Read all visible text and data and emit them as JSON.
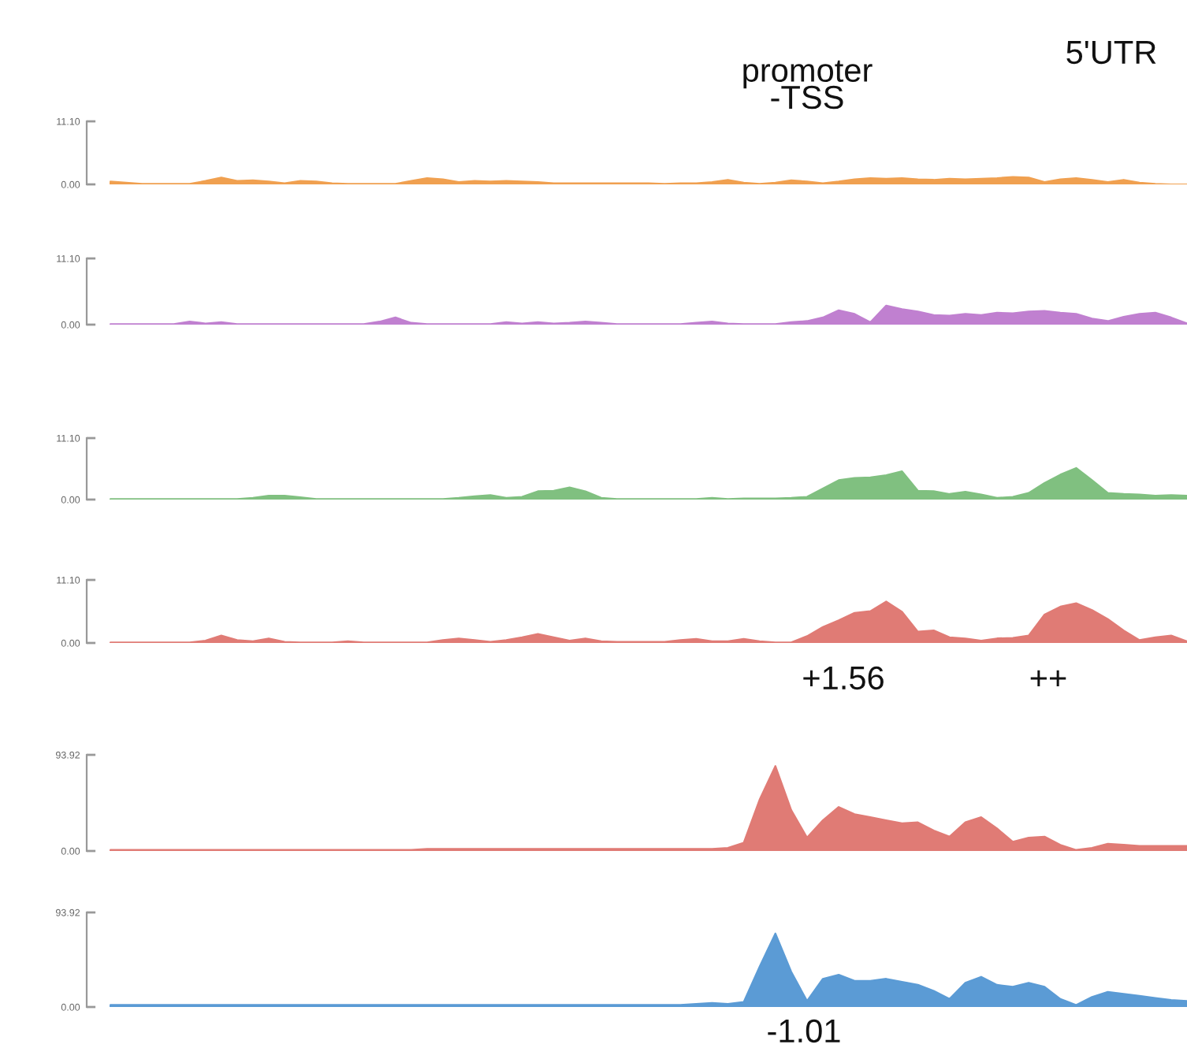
{
  "chart_data": [
    {
      "type": "area",
      "categories": [
        null,
        null,
        null,
        null,
        null,
        null,
        null,
        null,
        null,
        null,
        null,
        null,
        null,
        null,
        null,
        null,
        null,
        null,
        null,
        null,
        null,
        null,
        null,
        null,
        null,
        null,
        null,
        null,
        null,
        null,
        null,
        null,
        null,
        null,
        null,
        null,
        null,
        null,
        null,
        null,
        null,
        null,
        null,
        null,
        null,
        null,
        null,
        null,
        null,
        null,
        null,
        null,
        null,
        null,
        null,
        null,
        null,
        null,
        null,
        null,
        null,
        null,
        null,
        null,
        null,
        null,
        null,
        null,
        null
      ],
      "series": [
        {
          "color": "#f0a050",
          "values": [
            0.5,
            0.3,
            0.1,
            0.1,
            0.1,
            0.1,
            0.6,
            1.2,
            0.6,
            0.7,
            0.5,
            0.2,
            0.6,
            0.5,
            0.2,
            0.1,
            0.1,
            0.1,
            0.1,
            0.6,
            1.1,
            0.9,
            0.4,
            0.6,
            0.5,
            0.6,
            0.5,
            0.4,
            0.2,
            0.2,
            0.2,
            0.2,
            0.2,
            0.2,
            0.2,
            0.1,
            0.2,
            0.2,
            0.4,
            0.8,
            0.3,
            0.1,
            0.3,
            0.7,
            0.5,
            0.2,
            0.5,
            0.9,
            1.1,
            1.0,
            1.1,
            0.9,
            0.8,
            1.0,
            0.9,
            1.0,
            1.1,
            1.3,
            1.2,
            0.4,
            0.9,
            1.1,
            0.8,
            0.4,
            0.8,
            0.3,
            0.1,
            0,
            0
          ]
        }
      ],
      "ylim": [
        0,
        11.1
      ],
      "yticks": [
        {
          "value": 0,
          "label": "0.00"
        },
        {
          "value": 11.1,
          "label": "11.10"
        }
      ],
      "tick_labels": "y",
      "annotations": [
        "promoter\n-TSS",
        "5'UTR"
      ]
    },
    {
      "type": "area",
      "categories": [
        null,
        null,
        null,
        null,
        null,
        null,
        null,
        null,
        null,
        null,
        null,
        null,
        null,
        null,
        null,
        null,
        null,
        null,
        null,
        null,
        null,
        null,
        null,
        null,
        null,
        null,
        null,
        null,
        null,
        null,
        null,
        null,
        null,
        null,
        null,
        null,
        null,
        null,
        null,
        null,
        null,
        null,
        null,
        null,
        null,
        null,
        null,
        null,
        null,
        null,
        null,
        null,
        null,
        null,
        null,
        null,
        null,
        null,
        null,
        null,
        null,
        null,
        null,
        null,
        null,
        null,
        null,
        null,
        null
      ],
      "series": [
        {
          "color": "#c080d0",
          "values": [
            0.1,
            0.1,
            0.1,
            0.1,
            0.1,
            0.5,
            0.2,
            0.4,
            0.1,
            0.1,
            0.1,
            0.1,
            0.1,
            0.1,
            0.1,
            0.1,
            0.1,
            0.5,
            1.2,
            0.3,
            0.1,
            0.1,
            0.1,
            0.1,
            0.1,
            0.4,
            0.2,
            0.4,
            0.2,
            0.3,
            0.5,
            0.3,
            0.1,
            0.1,
            0.1,
            0.1,
            0.1,
            0.3,
            0.5,
            0.2,
            0.1,
            0.1,
            0.1,
            0.4,
            0.6,
            1.2,
            2.4,
            1.8,
            0.4,
            3.2,
            2.6,
            2.2,
            1.6,
            1.5,
            1.8,
            1.6,
            2.0,
            1.9,
            2.2,
            2.3,
            2.0,
            1.8,
            1.0,
            0.6,
            1.3,
            1.8,
            2.0,
            1.2,
            0.2
          ]
        }
      ],
      "ylim": [
        0,
        11.1
      ],
      "yticks": [
        {
          "value": 0,
          "label": "0.00"
        },
        {
          "value": 11.1,
          "label": "11.10"
        }
      ],
      "tick_labels": "y"
    },
    {
      "type": "area",
      "categories": [
        null,
        null,
        null,
        null,
        null,
        null,
        null,
        null,
        null,
        null,
        null,
        null,
        null,
        null,
        null,
        null,
        null,
        null,
        null,
        null,
        null,
        null,
        null,
        null,
        null,
        null,
        null,
        null,
        null,
        null,
        null,
        null,
        null,
        null,
        null,
        null,
        null,
        null,
        null,
        null,
        null,
        null,
        null,
        null,
        null,
        null,
        null,
        null,
        null,
        null,
        null,
        null,
        null,
        null,
        null,
        null,
        null,
        null,
        null,
        null,
        null,
        null,
        null,
        null,
        null,
        null,
        null,
        null,
        null
      ],
      "series": [
        {
          "color": "#80c080",
          "values": [
            0.1,
            0.1,
            0.1,
            0.1,
            0.1,
            0.1,
            0.1,
            0.1,
            0.1,
            0.3,
            0.7,
            0.7,
            0.4,
            0.1,
            0.1,
            0.1,
            0.1,
            0.1,
            0.1,
            0.1,
            0.1,
            0.1,
            0.3,
            0.6,
            0.8,
            0.3,
            0.5,
            1.5,
            1.6,
            2.2,
            1.5,
            0.3,
            0.1,
            0.1,
            0.1,
            0.1,
            0.1,
            0.1,
            0.3,
            0.1,
            0.2,
            0.2,
            0.2,
            0.3,
            0.5,
            2.0,
            3.5,
            3.9,
            4.0,
            4.4,
            5.1,
            1.6,
            1.5,
            1.0,
            1.4,
            0.9,
            0.3,
            0.5,
            1.2,
            3.0,
            4.5,
            5.7,
            3.5,
            1.2,
            1.0,
            0.9,
            0.7,
            0.8,
            0.7
          ]
        }
      ],
      "ylim": [
        0,
        11.1
      ],
      "yticks": [
        {
          "value": 0,
          "label": "0.00"
        },
        {
          "value": 11.1,
          "label": "11.10"
        }
      ],
      "tick_labels": "y"
    },
    {
      "type": "area",
      "categories": [
        null,
        null,
        null,
        null,
        null,
        null,
        null,
        null,
        null,
        null,
        null,
        null,
        null,
        null,
        null,
        null,
        null,
        null,
        null,
        null,
        null,
        null,
        null,
        null,
        null,
        null,
        null,
        null,
        null,
        null,
        null,
        null,
        null,
        null,
        null,
        null,
        null,
        null,
        null,
        null,
        null,
        null,
        null,
        null,
        null,
        null,
        null,
        null,
        null,
        null,
        null,
        null,
        null,
        null,
        null,
        null,
        null,
        null,
        null,
        null,
        null,
        null,
        null,
        null,
        null,
        null,
        null,
        null,
        null
      ],
      "series": [
        {
          "color": "#e07b75",
          "values": [
            0.1,
            0.1,
            0.1,
            0.1,
            0.1,
            0.1,
            0.4,
            1.3,
            0.5,
            0.3,
            0.8,
            0.2,
            0.1,
            0.1,
            0.1,
            0.3,
            0.1,
            0.1,
            0.1,
            0.1,
            0.1,
            0.5,
            0.8,
            0.5,
            0.2,
            0.5,
            1.0,
            1.6,
            1.0,
            0.4,
            0.8,
            0.3,
            0.2,
            0.2,
            0.2,
            0.2,
            0.5,
            0.7,
            0.3,
            0.3,
            0.7,
            0.3,
            0.1,
            0.1,
            1.2,
            2.8,
            4.0,
            5.3,
            5.6,
            7.3,
            5.5,
            2.0,
            2.2,
            1.0,
            0.8,
            0.4,
            0.8,
            0.9,
            1.3,
            5.0,
            6.4,
            7.0,
            5.8,
            4.2,
            2.2,
            0.5,
            1.0,
            1.3,
            0.3
          ]
        }
      ],
      "ylim": [
        0,
        11.1
      ],
      "yticks": [
        {
          "value": 0,
          "label": "0.00"
        },
        {
          "value": 11.1,
          "label": "11.10"
        }
      ],
      "tick_labels": "y",
      "annotations": [
        "+1.56",
        "++"
      ]
    },
    {
      "type": "area",
      "categories": [
        null,
        null,
        null,
        null,
        null,
        null,
        null,
        null,
        null,
        null,
        null,
        null,
        null,
        null,
        null,
        null,
        null,
        null,
        null,
        null,
        null,
        null,
        null,
        null,
        null,
        null,
        null,
        null,
        null,
        null,
        null,
        null,
        null,
        null,
        null,
        null,
        null,
        null,
        null,
        null,
        null,
        null,
        null,
        null,
        null,
        null,
        null,
        null,
        null,
        null,
        null,
        null,
        null,
        null,
        null,
        null,
        null,
        null,
        null,
        null,
        null,
        null,
        null,
        null,
        null,
        null,
        null,
        null,
        null
      ],
      "series": [
        {
          "color": "#e07b75",
          "values": [
            1,
            1,
            1,
            1,
            1,
            1,
            1,
            1,
            1,
            1,
            1,
            1,
            1,
            1,
            1,
            1,
            1,
            1,
            1,
            1,
            2,
            2,
            2,
            2,
            2,
            2,
            2,
            2,
            2,
            2,
            2,
            2,
            2,
            2,
            2,
            2,
            2,
            2,
            2,
            3,
            8,
            50,
            83,
            40,
            13,
            30,
            43,
            36,
            33,
            30,
            27,
            28,
            20,
            14,
            28,
            33,
            22,
            9,
            13,
            14,
            6,
            1,
            3,
            7,
            6,
            5,
            5,
            5,
            5
          ]
        }
      ],
      "ylim": [
        0,
        93.92
      ],
      "yticks": [
        {
          "value": 0,
          "label": "0.00"
        },
        {
          "value": 93.92,
          "label": "93.92"
        }
      ],
      "tick_labels": "y"
    },
    {
      "type": "area",
      "categories": [
        null,
        null,
        null,
        null,
        null,
        null,
        null,
        null,
        null,
        null,
        null,
        null,
        null,
        null,
        null,
        null,
        null,
        null,
        null,
        null,
        null,
        null,
        null,
        null,
        null,
        null,
        null,
        null,
        null,
        null,
        null,
        null,
        null,
        null,
        null,
        null,
        null,
        null,
        null,
        null,
        null,
        null,
        null,
        null,
        null,
        null,
        null,
        null,
        null,
        null,
        null,
        null,
        null,
        null,
        null,
        null,
        null,
        null,
        null,
        null,
        null,
        null,
        null,
        null,
        null,
        null,
        null,
        null,
        null
      ],
      "series": [
        {
          "color": "#5b9bd5",
          "values": [
            2,
            2,
            2,
            2,
            2,
            2,
            2,
            2,
            2,
            2,
            2,
            2,
            2,
            2,
            2,
            2,
            2,
            2,
            2,
            2,
            2,
            2,
            2,
            2,
            2,
            2,
            2,
            2,
            2,
            2,
            2,
            2,
            2,
            2,
            2,
            2,
            2,
            3,
            4,
            3,
            5,
            40,
            73,
            35,
            6,
            28,
            32,
            26,
            26,
            28,
            25,
            22,
            16,
            8,
            24,
            30,
            22,
            20,
            24,
            20,
            8,
            2,
            10,
            15,
            13,
            11,
            9,
            7,
            6
          ]
        }
      ],
      "ylim": [
        0,
        93.92
      ],
      "yticks": [
        {
          "value": 0,
          "label": "0.00"
        },
        {
          "value": 93.92,
          "label": "93.92"
        }
      ],
      "tick_labels": "y",
      "annotations": [
        "-1.01"
      ]
    }
  ]
}
